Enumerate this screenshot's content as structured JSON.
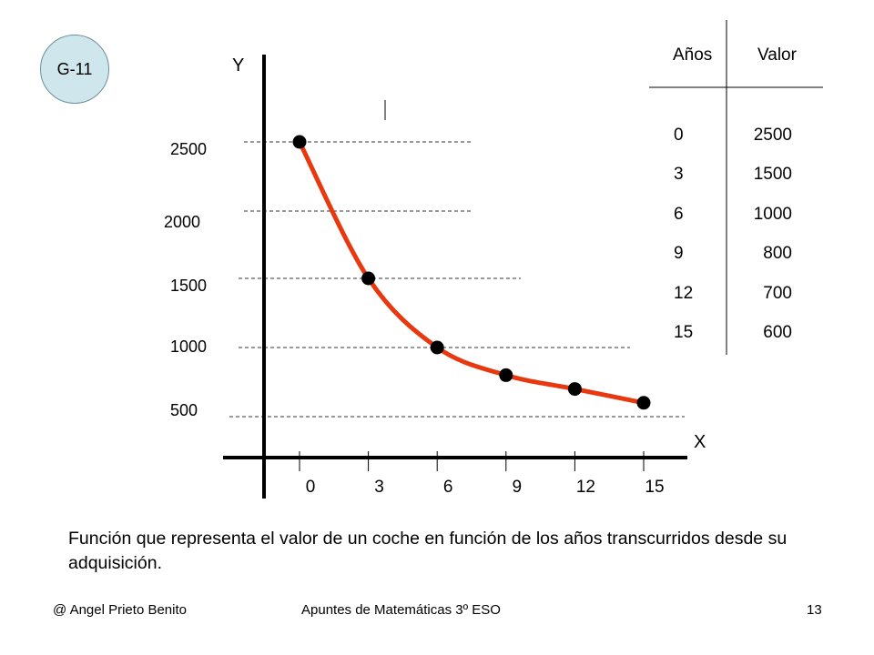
{
  "badge": {
    "label": "G-11",
    "color": "#cfe6ed"
  },
  "chart_data": {
    "type": "line",
    "x_label": "X",
    "y_label": "Y",
    "x_ticks": [
      "0",
      "3",
      "6",
      "9",
      "12",
      "15"
    ],
    "y_ticks": [
      "2500",
      "2000",
      "1500",
      "1000",
      "500"
    ],
    "x_range": [
      0,
      15
    ],
    "y_range": [
      500,
      2500
    ],
    "x": [
      0,
      3,
      6,
      9,
      12,
      15
    ],
    "y": [
      2500,
      1500,
      1000,
      800,
      700,
      600
    ],
    "grid": "dashed horizontal lines",
    "line_color": "#e8380f",
    "marker_color": "#000000"
  },
  "table": {
    "headers": [
      "Años",
      "Valor"
    ],
    "rows": [
      [
        "0",
        "2500"
      ],
      [
        "3",
        "1500"
      ],
      [
        "6",
        "1000"
      ],
      [
        "9",
        "800"
      ],
      [
        "12",
        "700"
      ],
      [
        "15",
        "600"
      ]
    ]
  },
  "caption": "Función que representa el valor de un coche en función de los años transcurridos desde su adquisición.",
  "footer": {
    "author": "@ Angel Prieto Benito",
    "title": "Apuntes de Matemáticas 3º ESO",
    "page": "13"
  }
}
